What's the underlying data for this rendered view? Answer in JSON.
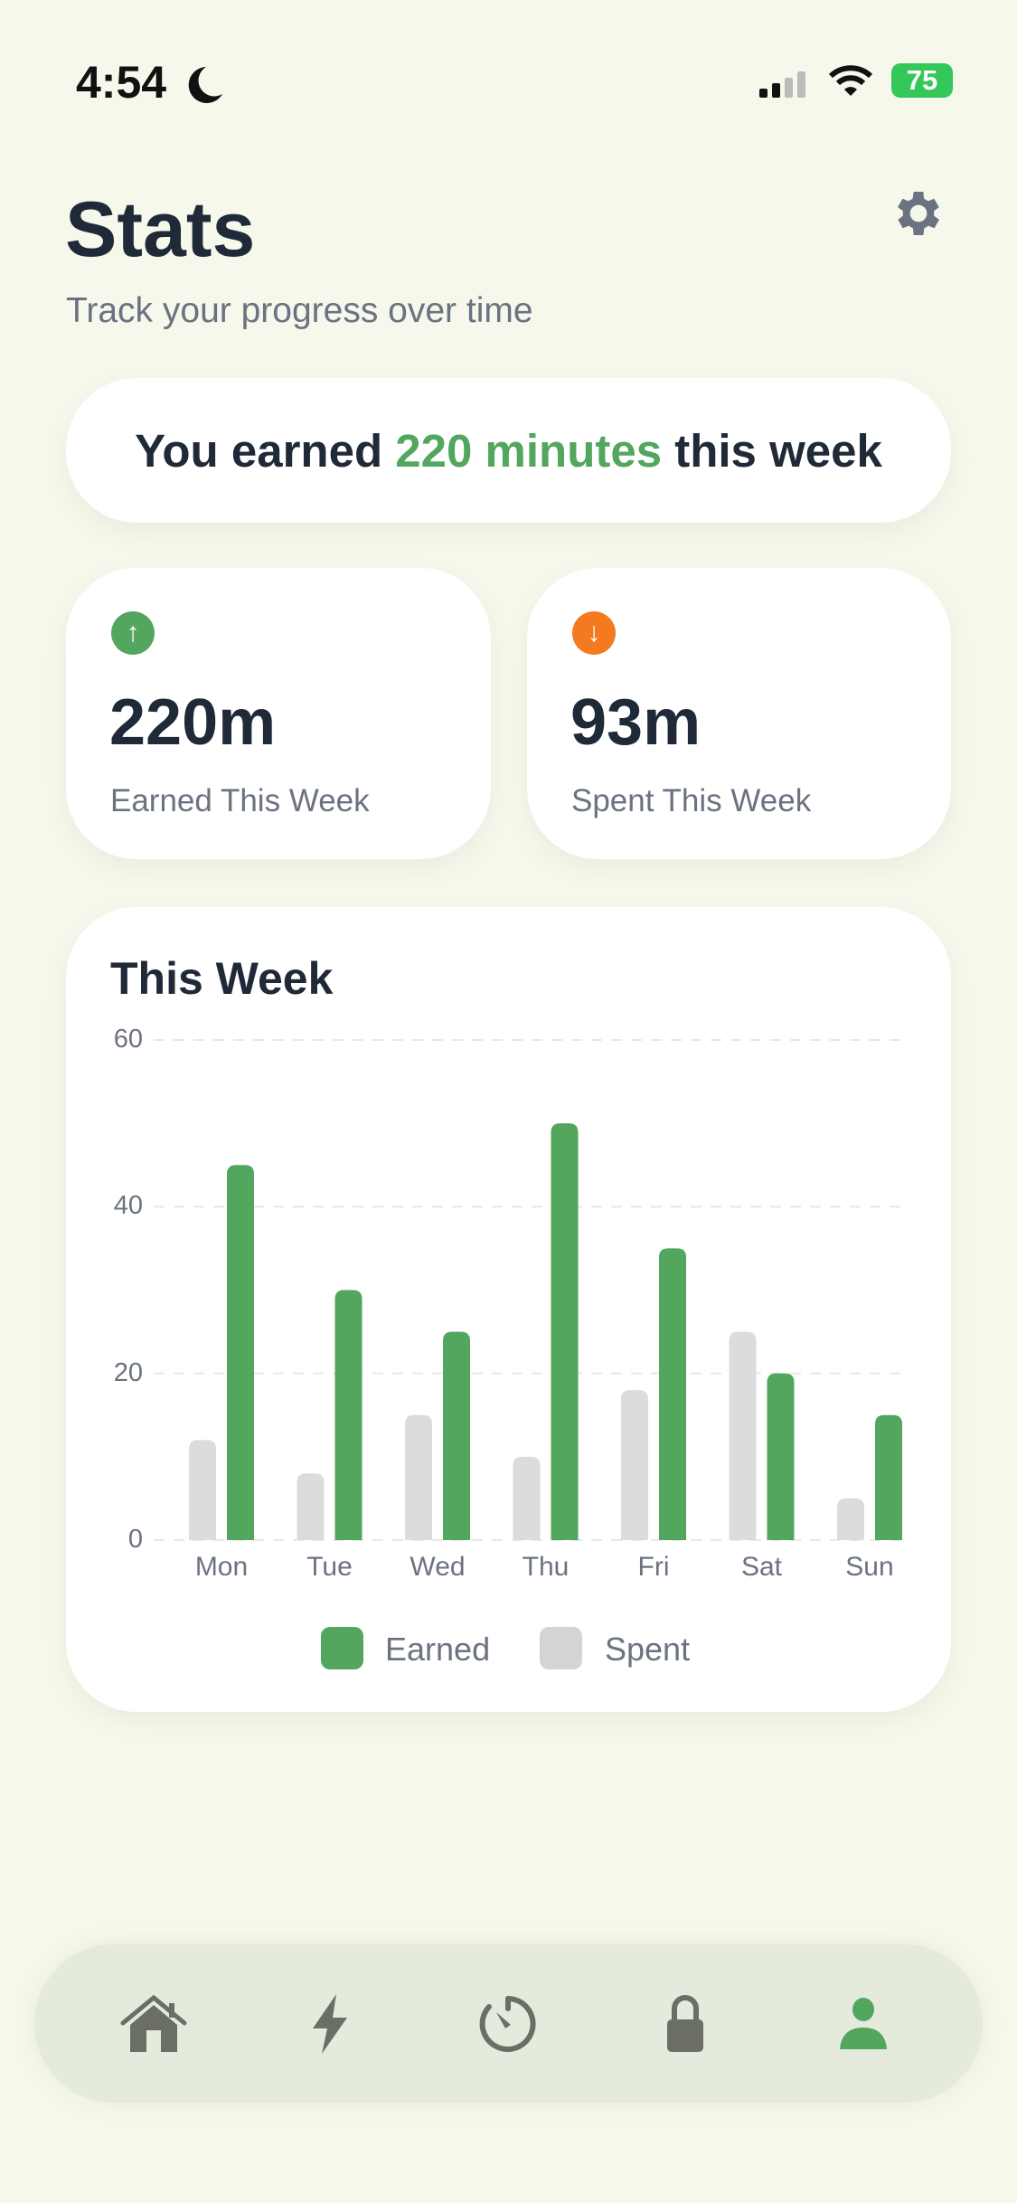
{
  "status_bar": {
    "time": "4:54",
    "battery": "75"
  },
  "header": {
    "title": "Stats",
    "subtitle": "Track your progress over time"
  },
  "banner": {
    "prefix": "You earned ",
    "highlight": "220 minutes",
    "suffix": " this week"
  },
  "stats": [
    {
      "value": "220m",
      "label": "Earned This Week",
      "icon": "arrow-up-icon"
    },
    {
      "value": "93m",
      "label": "Spent This Week",
      "icon": "arrow-down-icon"
    }
  ],
  "colors": {
    "earned": "#52a65e",
    "spent": "#dcdcdc",
    "spent_icon": "#f47a20"
  },
  "chart_data": {
    "type": "bar",
    "title": "This Week",
    "categories": [
      "Mon",
      "Tue",
      "Wed",
      "Thu",
      "Fri",
      "Sat",
      "Sun"
    ],
    "series": [
      {
        "name": "Spent",
        "values": [
          12,
          8,
          15,
          10,
          18,
          25,
          5
        ]
      },
      {
        "name": "Earned",
        "values": [
          45,
          30,
          25,
          50,
          35,
          20,
          15
        ]
      }
    ],
    "yticks": [
      "0",
      "20",
      "40",
      "60"
    ],
    "ylim": [
      0,
      60
    ],
    "grid": true,
    "legend": "bottom"
  },
  "legend": {
    "earned": "Earned",
    "spent": "Spent"
  },
  "nav": [
    "Home",
    "Boost",
    "Timer",
    "Lock",
    "Profile"
  ]
}
